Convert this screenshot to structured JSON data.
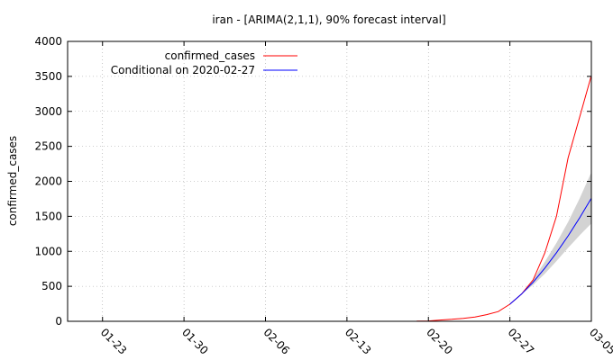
{
  "chart_data": {
    "type": "line",
    "title": "iran -  [ARIMA(2,1,1), 90% forecast interval]",
    "xlabel": "",
    "ylabel": "confirmed_cases",
    "x_ticks": [
      "01-23",
      "01-30",
      "02-06",
      "02-13",
      "02-20",
      "02-27",
      "03-05"
    ],
    "x_tick_day": [
      0,
      7,
      14,
      21,
      28,
      35,
      42
    ],
    "xlim_day": [
      -3,
      42
    ],
    "ylim": [
      0,
      4000
    ],
    "y_ticks": [
      0,
      500,
      1000,
      1500,
      2000,
      2500,
      3000,
      3500,
      4000
    ],
    "grid": true,
    "legend_position": "top-left",
    "series": [
      {
        "name": "confirmed_cases",
        "color": "#ff0000",
        "x_day": [
          27,
          28,
          29,
          30,
          31,
          32,
          33,
          34,
          35,
          36,
          37,
          38,
          39,
          40,
          41,
          42
        ],
        "values": [
          2,
          5,
          18,
          28,
          43,
          61,
          95,
          139,
          245,
          388,
          593,
          978,
          1501,
          2336,
          2922,
          3513
        ]
      },
      {
        "name": "Conditional on 2020-02-27",
        "color": "#0000ff",
        "x_day": [
          35,
          36,
          37,
          38,
          39,
          40,
          41,
          42
        ],
        "values": [
          245,
          388,
          560,
          760,
          980,
          1220,
          1480,
          1760
        ],
        "lower": [
          245,
          388,
          520,
          680,
          860,
          1050,
          1230,
          1400
        ],
        "upper": [
          245,
          388,
          600,
          850,
          1120,
          1420,
          1760,
          2130
        ],
        "band_color": "#d3d3d3"
      }
    ]
  }
}
